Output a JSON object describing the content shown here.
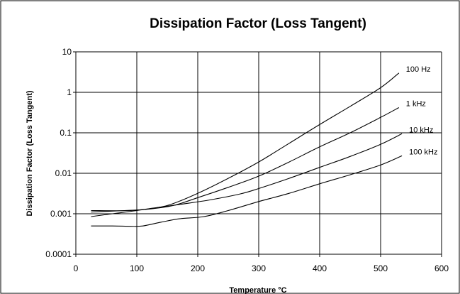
{
  "chart_data": {
    "type": "line",
    "title": "Dissipation Factor (Loss Tangent)",
    "xlabel": "Temperature °C",
    "ylabel": "Dissipation Factor (Loss Tangent)",
    "xlim": [
      0,
      600
    ],
    "ylim": [
      0.0001,
      10
    ],
    "y_scale": "log",
    "grid": true,
    "x_ticks": [
      0,
      100,
      200,
      300,
      400,
      500,
      600
    ],
    "y_ticks": [
      {
        "value": 0.0001,
        "label": "0.0001"
      },
      {
        "value": 0.001,
        "label": "0.001"
      },
      {
        "value": 0.01,
        "label": "0.01"
      },
      {
        "value": 0.1,
        "label": "0.1"
      },
      {
        "value": 1,
        "label": "1"
      },
      {
        "value": 10,
        "label": "10"
      }
    ],
    "series": [
      {
        "name": "100 Hz",
        "points": [
          [
            25,
            0.00085
          ],
          [
            60,
            0.001
          ],
          [
            100,
            0.0012
          ],
          [
            150,
            0.0016
          ],
          [
            200,
            0.0032
          ],
          [
            250,
            0.0075
          ],
          [
            300,
            0.019
          ],
          [
            350,
            0.055
          ],
          [
            400,
            0.16
          ],
          [
            450,
            0.45
          ],
          [
            500,
            1.3
          ],
          [
            530,
            3.0
          ]
        ]
      },
      {
        "name": "1 kHz",
        "points": [
          [
            25,
            0.0011
          ],
          [
            80,
            0.0012
          ],
          [
            120,
            0.0013
          ],
          [
            160,
            0.0016
          ],
          [
            200,
            0.0025
          ],
          [
            250,
            0.0045
          ],
          [
            300,
            0.0085
          ],
          [
            350,
            0.019
          ],
          [
            400,
            0.045
          ],
          [
            450,
            0.1
          ],
          [
            500,
            0.24
          ],
          [
            530,
            0.42
          ]
        ]
      },
      {
        "name": "10 kHz",
        "points": [
          [
            25,
            0.0012
          ],
          [
            90,
            0.0012
          ],
          [
            130,
            0.0014
          ],
          [
            170,
            0.0017
          ],
          [
            220,
            0.0022
          ],
          [
            270,
            0.0031
          ],
          [
            300,
            0.0042
          ],
          [
            350,
            0.0075
          ],
          [
            400,
            0.014
          ],
          [
            450,
            0.026
          ],
          [
            500,
            0.052
          ],
          [
            535,
            0.095
          ]
        ]
      },
      {
        "name": "100 kHz",
        "points": [
          [
            25,
            0.0005
          ],
          [
            60,
            0.0005
          ],
          [
            90,
            0.00049
          ],
          [
            110,
            0.0005
          ],
          [
            140,
            0.00062
          ],
          [
            170,
            0.00075
          ],
          [
            210,
            0.00085
          ],
          [
            250,
            0.0012
          ],
          [
            300,
            0.002
          ],
          [
            350,
            0.0032
          ],
          [
            400,
            0.0055
          ],
          [
            450,
            0.0092
          ],
          [
            500,
            0.016
          ],
          [
            535,
            0.027
          ]
        ]
      }
    ]
  }
}
